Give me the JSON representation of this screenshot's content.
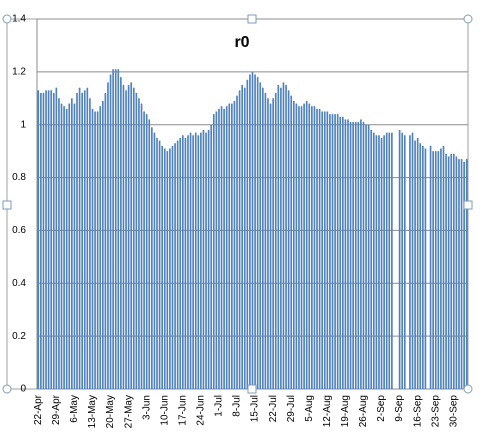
{
  "chart_data": {
    "type": "bar",
    "title": "r0",
    "categories": [
      "22-Apr",
      null,
      null,
      null,
      null,
      null,
      null,
      "29-Apr",
      null,
      null,
      null,
      null,
      null,
      null,
      "6-May",
      null,
      null,
      null,
      null,
      null,
      null,
      "13-May",
      null,
      null,
      null,
      null,
      null,
      null,
      "20-May",
      null,
      null,
      null,
      null,
      null,
      null,
      "27-May",
      null,
      null,
      null,
      null,
      null,
      null,
      "3-Jun",
      null,
      null,
      null,
      null,
      null,
      null,
      "10-Jun",
      null,
      null,
      null,
      null,
      null,
      null,
      "17-Jun",
      null,
      null,
      null,
      null,
      null,
      null,
      "24-Jun",
      null,
      null,
      null,
      null,
      null,
      null,
      "1-Jul",
      null,
      null,
      null,
      null,
      null,
      null,
      "8-Jul",
      null,
      null,
      null,
      null,
      null,
      null,
      "15-Jul",
      null,
      null,
      null,
      null,
      null,
      null,
      "22-Jul",
      null,
      null,
      null,
      null,
      null,
      null,
      "29-Jul",
      null,
      null,
      null,
      null,
      null,
      null,
      "5-Aug",
      null,
      null,
      null,
      null,
      null,
      null,
      "12-Aug",
      null,
      null,
      null,
      null,
      null,
      null,
      "19-Aug",
      null,
      null,
      null,
      null,
      null,
      null,
      "26-Aug",
      null,
      null,
      null,
      null,
      null,
      null,
      "2-Sep",
      null,
      null,
      null,
      null,
      null,
      null,
      "9-Sep",
      null,
      null,
      null,
      null,
      null,
      null,
      "16-Sep",
      null,
      null,
      null,
      null,
      null,
      null,
      "23-Sep",
      null,
      null,
      null,
      null,
      null,
      null,
      "30-Sep",
      null,
      null,
      null,
      null,
      null
    ],
    "values": [
      1.13,
      1.12,
      1.12,
      1.13,
      1.13,
      1.13,
      1.12,
      1.14,
      1.1,
      1.08,
      1.07,
      1.06,
      1.08,
      1.1,
      1.08,
      1.12,
      1.14,
      1.12,
      1.13,
      1.14,
      1.1,
      1.06,
      1.05,
      1.05,
      1.07,
      1.09,
      1.12,
      1.16,
      1.19,
      1.21,
      1.21,
      1.21,
      1.18,
      1.15,
      1.13,
      1.15,
      1.16,
      1.14,
      1.12,
      1.1,
      1.08,
      1.05,
      1.04,
      1.02,
      0.99,
      0.97,
      0.95,
      0.94,
      0.92,
      0.91,
      0.9,
      0.91,
      0.92,
      0.93,
      0.94,
      0.95,
      0.96,
      0.95,
      0.96,
      0.97,
      0.96,
      0.97,
      0.96,
      0.97,
      0.98,
      0.97,
      0.98,
      1.0,
      1.04,
      1.05,
      1.06,
      1.07,
      1.06,
      1.07,
      1.08,
      1.08,
      1.09,
      1.11,
      1.13,
      1.15,
      1.14,
      1.17,
      1.19,
      1.2,
      1.19,
      1.18,
      1.16,
      1.14,
      1.12,
      1.1,
      1.08,
      1.1,
      1.12,
      1.15,
      1.14,
      1.16,
      1.15,
      1.13,
      1.11,
      1.09,
      1.08,
      1.07,
      1.07,
      1.08,
      1.09,
      1.08,
      1.07,
      1.07,
      1.06,
      1.06,
      1.05,
      1.05,
      1.05,
      1.04,
      1.04,
      1.04,
      1.04,
      1.03,
      1.03,
      1.02,
      1.02,
      1.01,
      1.01,
      1.01,
      1.01,
      1.02,
      1.01,
      1.0,
      1.0,
      0.98,
      0.97,
      0.96,
      0.96,
      0.95,
      0.96,
      0.97,
      0.97,
      0.97,
      null,
      null,
      0.98,
      0.97,
      0.96,
      null,
      0.96,
      0.97,
      0.94,
      0.95,
      0.93,
      0.92,
      0.91,
      null,
      0.92,
      0.9,
      0.9,
      0.9,
      0.91,
      0.92,
      0.89,
      0.88,
      0.89,
      0.89,
      0.88,
      0.87,
      0.87,
      0.86,
      0.87
    ],
    "color": "#4f81bd",
    "ylim": [
      0,
      1.4
    ],
    "yticks": [
      0,
      0.2,
      0.4,
      0.6,
      0.8,
      1,
      1.2,
      1.4
    ],
    "grid": true
  }
}
